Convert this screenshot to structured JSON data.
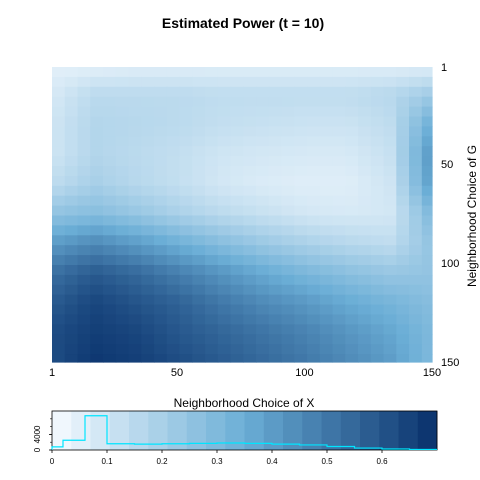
{
  "chart_data": [
    {
      "type": "heatmap",
      "title": "Estimated Power (t = 10)",
      "xlabel": "Neighborhood Choice of X",
      "ylabel": "Neighborhood Choice of G",
      "xlim": [
        1,
        150
      ],
      "ylim": [
        1,
        150
      ],
      "x_ticks": [
        "1",
        "50",
        "100",
        "150"
      ],
      "y_ticks": [
        "1",
        "50",
        "100",
        "150"
      ],
      "y_axis_side": "right",
      "y_reversed": true,
      "colorscale": [
        "#f7fbff",
        "#08306b"
      ],
      "rows": [
        {
          "g": 1,
          "values": [
            0.05,
            0.05,
            0.06,
            0.06,
            0.06,
            0.06,
            0.06,
            0.06,
            0.06,
            0.06
          ]
        },
        {
          "g": 15,
          "values": [
            0.08,
            0.15,
            0.15,
            0.15,
            0.14,
            0.14,
            0.14,
            0.14,
            0.16,
            0.22
          ]
        },
        {
          "g": 30,
          "values": [
            0.1,
            0.17,
            0.16,
            0.15,
            0.13,
            0.12,
            0.11,
            0.11,
            0.14,
            0.35
          ]
        },
        {
          "g": 45,
          "values": [
            0.1,
            0.17,
            0.15,
            0.13,
            0.1,
            0.09,
            0.08,
            0.08,
            0.12,
            0.42
          ]
        },
        {
          "g": 60,
          "values": [
            0.14,
            0.2,
            0.16,
            0.13,
            0.09,
            0.07,
            0.06,
            0.06,
            0.1,
            0.4
          ]
        },
        {
          "g": 75,
          "values": [
            0.25,
            0.28,
            0.24,
            0.19,
            0.15,
            0.12,
            0.09,
            0.08,
            0.09,
            0.3
          ]
        },
        {
          "g": 90,
          "values": [
            0.4,
            0.45,
            0.4,
            0.34,
            0.28,
            0.23,
            0.19,
            0.16,
            0.14,
            0.25
          ]
        },
        {
          "g": 105,
          "values": [
            0.52,
            0.58,
            0.54,
            0.48,
            0.42,
            0.36,
            0.31,
            0.27,
            0.24,
            0.25
          ]
        },
        {
          "g": 120,
          "values": [
            0.58,
            0.64,
            0.6,
            0.56,
            0.5,
            0.45,
            0.41,
            0.36,
            0.32,
            0.28
          ]
        },
        {
          "g": 135,
          "values": [
            0.62,
            0.66,
            0.64,
            0.59,
            0.55,
            0.51,
            0.47,
            0.42,
            0.37,
            0.3
          ]
        },
        {
          "g": 150,
          "values": [
            0.62,
            0.68,
            0.66,
            0.62,
            0.58,
            0.54,
            0.5,
            0.45,
            0.4,
            0.3
          ]
        }
      ]
    },
    {
      "type": "bar",
      "legend_ticks": [
        "0",
        "0.1",
        "0.2",
        "0.3",
        "0.4",
        "0.5",
        "0.6"
      ],
      "xlim": [
        0,
        0.7
      ],
      "color_bins": 20,
      "hist_y_ticks": [
        "0",
        "4000"
      ],
      "hist_color": "#00e5ff",
      "hist": {
        "bin_edges": [
          0,
          0.02,
          0.04,
          0.06,
          0.08,
          0.1,
          0.15,
          0.2,
          0.25,
          0.3,
          0.35,
          0.4,
          0.45,
          0.5,
          0.55,
          0.6,
          0.65,
          0.7
        ],
        "counts": [
          800,
          2500,
          2500,
          8800,
          8800,
          1600,
          1500,
          1600,
          1700,
          1800,
          1700,
          1500,
          1300,
          900,
          500,
          250,
          150
        ]
      }
    }
  ]
}
